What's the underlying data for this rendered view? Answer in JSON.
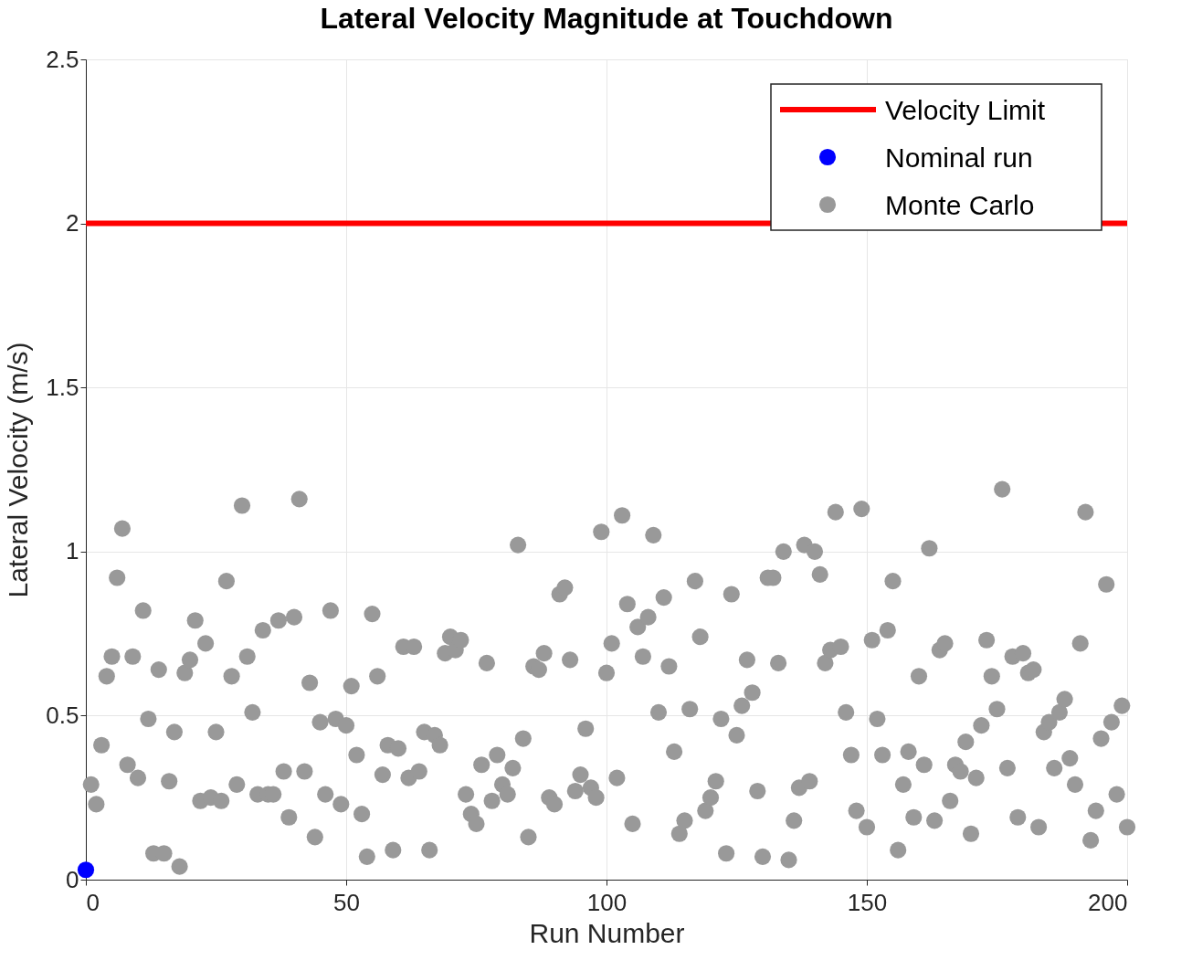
{
  "chart_data": {
    "type": "scatter",
    "title": "Lateral Velocity Magnitude at Touchdown",
    "xlabel": "Run Number",
    "ylabel": "Lateral Velocity (m/s)",
    "xlim": [
      0,
      200
    ],
    "xticks": [
      0,
      50,
      100,
      150,
      200
    ],
    "ylim": [
      0,
      2.5
    ],
    "yticks": [
      0,
      0.5,
      1,
      1.5,
      2,
      2.5
    ],
    "grid": true,
    "legend": "top right",
    "marker": "circle",
    "ref_lines": [
      {
        "axis": "y",
        "value": 2,
        "label": "Velocity Limit",
        "color": "#ff0000"
      }
    ],
    "series": [
      {
        "name": "Nominal run",
        "color": "#0000ff",
        "x": [
          0
        ],
        "values": [
          0.03
        ]
      },
      {
        "name": "Monte Carlo",
        "color": "#999999",
        "x": [
          1,
          2,
          3,
          4,
          5,
          6,
          7,
          8,
          9,
          10,
          11,
          12,
          13,
          14,
          15,
          16,
          17,
          18,
          19,
          20,
          21,
          22,
          23,
          24,
          25,
          26,
          27,
          28,
          29,
          30,
          31,
          32,
          33,
          34,
          35,
          36,
          37,
          38,
          39,
          40,
          41,
          42,
          43,
          44,
          45,
          46,
          47,
          48,
          49,
          50,
          51,
          52,
          53,
          54,
          55,
          56,
          57,
          58,
          59,
          60,
          61,
          62,
          63,
          64,
          65,
          66,
          67,
          68,
          69,
          70,
          71,
          72,
          73,
          74,
          75,
          76,
          77,
          78,
          79,
          80,
          81,
          82,
          83,
          84,
          85,
          86,
          87,
          88,
          89,
          90,
          91,
          92,
          93,
          94,
          95,
          96,
          97,
          98,
          99,
          100,
          101,
          102,
          103,
          104,
          105,
          106,
          107,
          108,
          109,
          110,
          111,
          112,
          113,
          114,
          115,
          116,
          117,
          118,
          119,
          120,
          121,
          122,
          123,
          124,
          125,
          126,
          127,
          128,
          129,
          130,
          131,
          132,
          133,
          134,
          135,
          136,
          137,
          138,
          139,
          140,
          141,
          142,
          143,
          144,
          145,
          146,
          147,
          148,
          149,
          150,
          151,
          152,
          153,
          154,
          155,
          156,
          157,
          158,
          159,
          160,
          161,
          162,
          163,
          164,
          165,
          166,
          167,
          168,
          169,
          170,
          171,
          172,
          173,
          174,
          175,
          176,
          177,
          178,
          179,
          180,
          181,
          182,
          183,
          184,
          185,
          186,
          187,
          188,
          189,
          190,
          191,
          192,
          193,
          194,
          195,
          196,
          197,
          198,
          199,
          200
        ],
        "values": [
          0.29,
          0.23,
          0.41,
          0.62,
          0.68,
          0.92,
          1.07,
          0.35,
          0.68,
          0.31,
          0.82,
          0.49,
          0.08,
          0.64,
          0.08,
          0.3,
          0.45,
          0.04,
          0.63,
          0.67,
          0.79,
          0.24,
          0.72,
          0.25,
          0.45,
          0.24,
          0.91,
          0.62,
          0.29,
          1.14,
          0.68,
          0.51,
          0.26,
          0.76,
          0.26,
          0.26,
          0.79,
          0.33,
          0.19,
          0.8,
          1.16,
          0.33,
          0.6,
          0.13,
          0.48,
          0.26,
          0.82,
          0.49,
          0.23,
          0.47,
          0.59,
          0.38,
          0.2,
          0.07,
          0.81,
          0.62,
          0.32,
          0.41,
          0.09,
          0.4,
          0.71,
          0.31,
          0.71,
          0.33,
          0.45,
          0.09,
          0.44,
          0.41,
          0.69,
          0.74,
          0.7,
          0.73,
          0.26,
          0.2,
          0.17,
          0.35,
          0.66,
          0.24,
          0.38,
          0.29,
          0.26,
          0.34,
          1.02,
          0.43,
          0.13,
          0.65,
          0.64,
          0.69,
          0.25,
          0.23,
          0.87,
          0.89,
          0.67,
          0.27,
          0.32,
          0.46,
          0.28,
          0.25,
          1.06,
          0.63,
          0.72,
          0.31,
          1.11,
          0.84,
          0.17,
          0.77,
          0.68,
          0.8,
          1.05,
          0.51,
          0.86,
          0.65,
          0.39,
          0.14,
          0.18,
          0.52,
          0.91,
          0.74,
          0.21,
          0.25,
          0.3,
          0.49,
          0.08,
          0.87,
          0.44,
          0.53,
          0.67,
          0.57,
          0.27,
          0.07,
          0.92,
          0.92,
          0.66,
          1.0,
          0.06,
          0.18,
          0.28,
          1.02,
          0.3,
          1.0,
          0.93,
          0.66,
          0.7,
          1.12,
          0.71,
          0.51,
          0.38,
          0.21,
          1.13,
          0.16,
          0.73,
          0.49,
          0.38,
          0.76,
          0.91,
          0.09,
          0.29,
          0.39,
          0.19,
          0.62,
          0.35,
          1.01,
          0.18,
          0.7,
          0.72,
          0.24,
          0.35,
          0.33,
          0.42,
          0.14,
          0.31,
          0.47,
          0.73,
          0.62,
          0.52,
          1.19,
          0.34,
          0.68,
          0.19,
          0.69,
          0.63,
          0.64,
          0.16,
          0.45,
          0.48,
          0.34,
          0.51,
          0.55,
          0.37,
          0.29,
          0.72,
          1.12,
          0.12,
          0.21,
          0.43,
          0.9,
          0.48,
          0.26,
          0.53,
          0.16
        ]
      }
    ]
  }
}
